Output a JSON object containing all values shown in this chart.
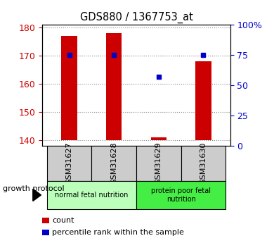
{
  "title": "GDS880 / 1367753_at",
  "samples": [
    "GSM31627",
    "GSM31628",
    "GSM31629",
    "GSM31630"
  ],
  "bar_values": [
    177,
    178,
    141,
    168
  ],
  "bar_bottom": 140,
  "bar_color": "#cc0000",
  "bar_width": 0.35,
  "percentile_values": [
    75,
    75,
    57,
    75
  ],
  "percentile_color": "#0000cc",
  "ylim_left": [
    138,
    181
  ],
  "ylim_right": [
    0,
    100
  ],
  "yticks_left": [
    140,
    150,
    160,
    170,
    180
  ],
  "yticks_right": [
    0,
    25,
    50,
    75,
    100
  ],
  "ytick_labels_right": [
    "0",
    "25",
    "50",
    "75",
    "100%"
  ],
  "left_tick_color": "#cc0000",
  "right_tick_color": "#0000cc",
  "grid_color": "#888888",
  "groups": [
    {
      "label": "normal fetal nutrition",
      "samples": [
        0,
        1
      ],
      "color": "#bbffbb"
    },
    {
      "label": "protein poor fetal\nnutrition",
      "samples": [
        2,
        3
      ],
      "color": "#44ee44"
    }
  ],
  "group_label": "growth protocol",
  "legend_items": [
    {
      "color": "#cc0000",
      "label": "count"
    },
    {
      "color": "#0000cc",
      "label": "percentile rank within the sample"
    }
  ],
  "background_color": "#ffffff",
  "plot_bg_color": "#ffffff",
  "tick_label_area_color": "#cccccc"
}
